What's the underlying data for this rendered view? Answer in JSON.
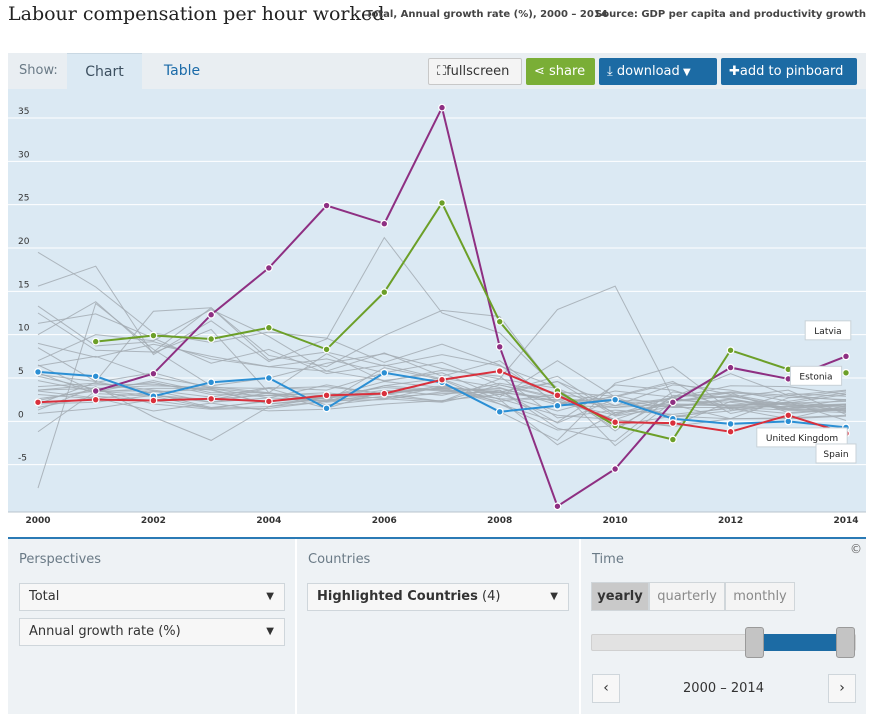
{
  "header": {
    "title": "Labour compensation per hour worked",
    "subtitle": "Total, Annual growth rate (%), 2000 – 2014",
    "source": "Source: GDP per capita and productivity growth"
  },
  "toolbar": {
    "show_label": "Show:",
    "tab_chart": "Chart",
    "tab_table": "Table",
    "fullscreen": "fullscreen",
    "share": "share",
    "download": "download",
    "pinboard": "add to pinboard"
  },
  "perspectives": {
    "label": "Perspectives",
    "measure": "Total",
    "unit": "Annual growth rate (%)"
  },
  "countries": {
    "label": "Countries",
    "selection": "Highlighted Countries",
    "count": "(4)"
  },
  "time": {
    "label": "Time",
    "options": [
      "yearly",
      "quarterly",
      "monthly"
    ],
    "selected": "yearly",
    "range": "2000 – 2014"
  },
  "copyright": "©",
  "colors": {
    "latvia": "#8e2f82",
    "estonia": "#6c9f28",
    "united_kingdom": "#2b8fd4",
    "spain": "#d9303c",
    "background": "#dbe9f3",
    "grey_series": "#a3acb3"
  },
  "chart_data": {
    "type": "line",
    "title": "Labour compensation per hour worked",
    "xlabel": "",
    "ylabel": "",
    "ylim": [
      -10,
      38
    ],
    "y_ticks": [
      -5,
      0,
      5,
      10,
      15,
      20,
      25,
      30,
      35
    ],
    "x_ticks": [
      2000,
      2002,
      2004,
      2006,
      2008,
      2010,
      2012,
      2014
    ],
    "x": [
      2000,
      2001,
      2002,
      2003,
      2004,
      2005,
      2006,
      2007,
      2008,
      2009,
      2010,
      2011,
      2012,
      2013,
      2014
    ],
    "series": [
      {
        "name": "Latvia",
        "values": [
          null,
          3.5,
          5.5,
          12.3,
          17.7,
          24.9,
          22.8,
          36.2,
          8.6,
          -9.8,
          -5.5,
          2.2,
          6.2,
          4.9,
          7.5
        ]
      },
      {
        "name": "Estonia",
        "values": [
          null,
          9.2,
          9.9,
          9.5,
          10.8,
          8.3,
          14.9,
          25.2,
          11.5,
          3.5,
          -0.5,
          -2.1,
          8.2,
          6.0,
          5.6
        ]
      },
      {
        "name": "United Kingdom",
        "values": [
          5.7,
          5.2,
          2.9,
          4.5,
          5.0,
          1.5,
          5.6,
          4.5,
          1.1,
          1.8,
          2.5,
          0.3,
          -0.3,
          0.0,
          -0.7
        ]
      },
      {
        "name": "Spain",
        "values": [
          2.2,
          2.5,
          2.4,
          2.6,
          2.3,
          3.0,
          3.2,
          4.8,
          5.8,
          3.0,
          -0.1,
          -0.2,
          -1.2,
          0.7,
          -1.4
        ]
      }
    ],
    "background_series": [
      [
        19.5,
        15.5,
        10.2,
        9.1,
        10.3,
        9.6,
        6.8,
        8.9,
        6.5,
        2.1,
        2.8,
        4.4,
        3.1,
        1.9,
        1.6
      ],
      [
        15.6,
        17.9,
        7.7,
        11.6,
        6.9,
        9.5,
        21.2,
        12.5,
        10.2,
        3.8,
        -1.1,
        3.4,
        2.6,
        1.5,
        2.0
      ],
      [
        -7.7,
        13.6,
        8.3,
        4.1,
        5.0,
        6.7,
        7.8,
        6.1,
        4.9,
        12.9,
        15.6,
        2.7,
        4.1,
        4.0,
        3.1
      ],
      [
        8.5,
        4.6,
        12.7,
        13.1,
        7.1,
        8.0,
        6.4,
        7.7,
        6.4,
        3.9,
        -2.8,
        2.3,
        3.3,
        2.8,
        2.5
      ],
      [
        5.2,
        3.7,
        4.5,
        3.1,
        3.0,
        2.6,
        4.1,
        5.0,
        3.9,
        1.9,
        1.6,
        2.6,
        1.8,
        2.0,
        1.3
      ],
      [
        1.3,
        4.0,
        0.5,
        -2.2,
        1.7,
        2.8,
        4.6,
        3.9,
        3.4,
        2.4,
        0.2,
        2.4,
        2.2,
        1.4,
        1.2
      ],
      [
        3.6,
        4.2,
        4.3,
        3.6,
        2.0,
        2.7,
        3.6,
        3.0,
        4.4,
        3.3,
        -0.8,
        2.8,
        3.4,
        3.0,
        2.4
      ],
      [
        6.5,
        3.4,
        3.8,
        3.8,
        3.2,
        3.0,
        3.9,
        3.5,
        3.8,
        2.2,
        0.7,
        2.3,
        2.9,
        1.8,
        2.0
      ],
      [
        2.0,
        2.2,
        3.0,
        2.2,
        2.7,
        2.4,
        2.5,
        3.4,
        3.3,
        2.7,
        1.6,
        2.0,
        1.9,
        2.2,
        1.1
      ],
      [
        -1.2,
        3.5,
        3.0,
        2.5,
        3.8,
        1.9,
        2.6,
        2.2,
        3.6,
        -0.2,
        2.6,
        0.6,
        1.2,
        2.2,
        0.1
      ],
      [
        9.0,
        7.4,
        8.9,
        7.5,
        6.3,
        7.2,
        5.6,
        6.8,
        4.2,
        2.8,
        1.8,
        4.2,
        3.6,
        2.3,
        3.3
      ],
      [
        3.5,
        2.7,
        1.2,
        2.1,
        1.2,
        1.4,
        2.0,
        2.4,
        3.1,
        4.6,
        0.6,
        1.7,
        2.6,
        1.4,
        1.9
      ],
      [
        2.4,
        3.7,
        2.0,
        1.4,
        1.5,
        2.3,
        3.2,
        3.8,
        2.6,
        0.7,
        0.2,
        -0.6,
        0.3,
        0.4,
        0.7
      ],
      [
        0.9,
        1.5,
        2.5,
        2.6,
        3.0,
        3.3,
        2.6,
        4.0,
        3.3,
        5.2,
        0.8,
        2.8,
        3.3,
        1.0,
        1.5
      ],
      [
        11.3,
        12.4,
        9.6,
        6.7,
        8.3,
        5.5,
        6.5,
        4.9,
        2.5,
        -2.7,
        1.0,
        1.9,
        0.3,
        2.7,
        3.5
      ],
      [
        7.0,
        10.0,
        9.3,
        12.9,
        9.8,
        5.8,
        7.9,
        5.2,
        7.0,
        1.9,
        3.5,
        2.8,
        5.5,
        3.0,
        3.6
      ],
      [
        2.6,
        3.5,
        3.5,
        2.2,
        3.3,
        1.5,
        3.5,
        3.7,
        2.3,
        3.1,
        2.4,
        1.6,
        1.6,
        1.7,
        1.9
      ],
      [
        6.4,
        7.5,
        5.1,
        4.0,
        3.3,
        2.3,
        6.2,
        4.8,
        2.0,
        -0.1,
        4.2,
        3.6,
        1.6,
        1.3,
        1.5
      ],
      [
        5.4,
        4.6,
        3.2,
        1.6,
        2.3,
        2.7,
        3.1,
        4.1,
        3.1,
        1.2,
        3.0,
        1.6,
        2.5,
        1.3,
        1.0
      ],
      [
        10.0,
        13.8,
        7.9,
        10.6,
        3.3,
        7.8,
        4.6,
        5.9,
        5.2,
        0.4,
        1.3,
        0.8,
        1.5,
        0.3,
        1.8
      ],
      [
        3.6,
        3.8,
        4.1,
        3.9,
        3.8,
        4.0,
        3.2,
        2.3,
        4.2,
        2.6,
        0.2,
        -0.5,
        2.3,
        2.1,
        3.1
      ],
      [
        1.6,
        2.9,
        2.4,
        1.5,
        2.4,
        2.8,
        3.3,
        3.8,
        3.6,
        -0.8,
        -2.3,
        3.0,
        2.8,
        3.6,
        0.8
      ],
      [
        4.0,
        4.4,
        3.6,
        2.8,
        3.9,
        3.6,
        5.6,
        4.4,
        1.1,
        -2.2,
        4.4,
        6.3,
        1.3,
        3.2,
        2.9
      ],
      [
        4.7,
        3.4,
        4.7,
        3.3,
        3.3,
        2.2,
        2.9,
        2.3,
        4.9,
        3.8,
        1.0,
        1.9,
        1.8,
        2.1,
        2.3
      ],
      [
        2.0,
        4.5,
        5.6,
        3.8,
        2.7,
        4.2,
        3.1,
        3.9,
        2.0,
        -1.0,
        -0.5,
        0.6,
        0.3,
        0.3,
        0.6
      ],
      [
        3.1,
        2.6,
        3.4,
        3.7,
        2.0,
        2.5,
        2.8,
        3.2,
        3.4,
        4.6,
        1.8,
        2.7,
        1.5,
        0.9,
        1.4
      ],
      [
        12.5,
        8.2,
        8.0,
        13.1,
        7.6,
        6.3,
        9.9,
        12.8,
        12.1,
        3.4,
        2.9,
        4.6,
        0.9,
        2.2,
        1.7
      ],
      [
        5.6,
        3.2,
        2.9,
        1.5,
        1.7,
        2.3,
        4.1,
        3.6,
        2.6,
        2.5,
        2.4,
        2.3,
        3.0,
        1.5,
        2.5
      ],
      [
        13.3,
        8.7,
        9.2,
        7.2,
        6.3,
        5.8,
        4.7,
        5.6,
        2.8,
        7.0,
        2.8,
        0.4,
        1.7,
        1.7,
        1.2
      ]
    ],
    "callouts": [
      "Latvia",
      "Estonia",
      "United Kingdom",
      "Spain"
    ]
  }
}
